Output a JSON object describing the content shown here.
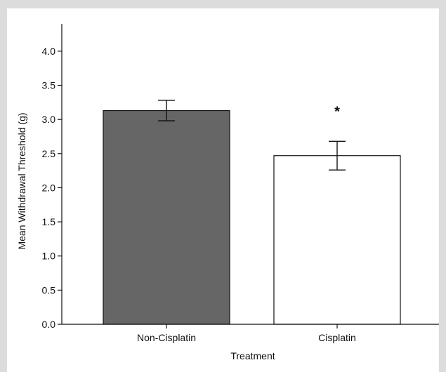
{
  "chart_data": {
    "type": "bar",
    "categories": [
      "Non-Cisplatin",
      "Cisplatin"
    ],
    "values": [
      3.13,
      2.47
    ],
    "error": [
      0.15,
      0.21
    ],
    "bar_colors": [
      "#666666",
      "#ffffff"
    ],
    "annotations": [
      {
        "category": "Cisplatin",
        "text": "*"
      }
    ],
    "xlabel": "Treatment",
    "ylabel": "Mean Withdrawal Threshold (g)",
    "ylim": [
      0,
      4.4
    ],
    "yticks": [
      0.0,
      0.5,
      1.0,
      1.5,
      2.0,
      2.5,
      3.0,
      3.5,
      4.0
    ],
    "ytick_labels": [
      "0.0",
      "0.5",
      "1.0",
      "1.5",
      "2.0",
      "2.5",
      "3.0",
      "3.5",
      "4.0"
    ],
    "grid": false
  }
}
